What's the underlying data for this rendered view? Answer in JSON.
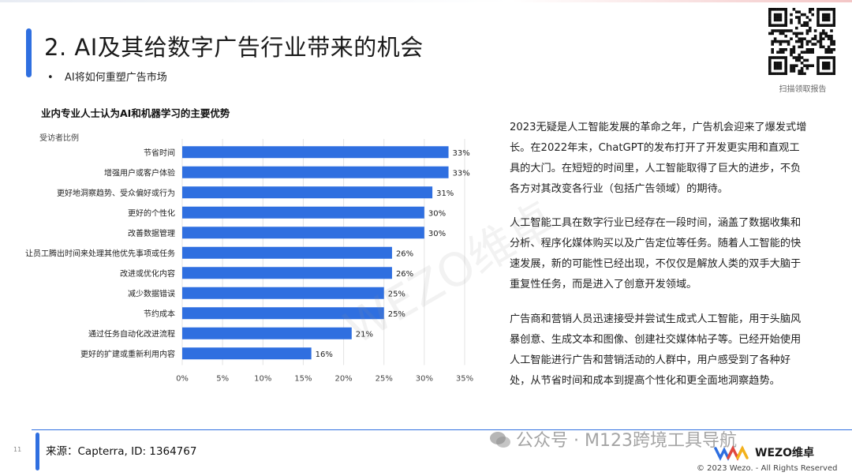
{
  "header": {
    "title": "2. AI及其给数字广告行业带来的机会",
    "bullet": "AI将如何重塑广告市场",
    "qr_caption": "扫描领取报告"
  },
  "chart_data": {
    "type": "bar",
    "orientation": "horizontal",
    "title": "业内专业人士认为AI和机器学习的主要优势",
    "subtitle": "受访者比例",
    "categories": [
      "节省时间",
      "增强用户或客户体验",
      "更好地洞察趋势、受众偏好或行为",
      "更好的个性化",
      "改善数据管理",
      "让员工腾出时间来处理其他优先事项或任务",
      "改进或优化内容",
      "减少数据错误",
      "节约成本",
      "通过任务自动化改进流程",
      "更好的扩建或重新利用内容"
    ],
    "values": [
      33,
      33,
      31,
      30,
      30,
      26,
      26,
      25,
      25,
      21,
      16
    ],
    "value_labels": [
      "33%",
      "33%",
      "31%",
      "30%",
      "30%",
      "26%",
      "26%",
      "25%",
      "25%",
      "21%",
      "16%"
    ],
    "xlim": [
      0,
      35
    ],
    "xticks": [
      "0%",
      "5%",
      "10%",
      "15%",
      "20%",
      "25%",
      "30%",
      "35%"
    ],
    "grid": true,
    "bar_color": "#2f6fe0"
  },
  "text": {
    "p1": "2023无疑是人工智能发展的革命之年，广告机会迎来了爆发式增长。在2022年末，ChatGPT的发布打开了开发更实用和直观工具的大门。在短短的时间里，人工智能取得了巨大的进步，不负各方对其改变各行业（包括广告领域）的期待。",
    "p2": "人工智能工具在数字行业已经存在一段时间，涵盖了数据收集和分析、程序化媒体购买以及广告定位等任务。随着人工智能的快速发展，新的可能性已经出现，不仅仅是解放人类的双手大脑于重复性任务，而是进入了创意开发领域。",
    "p3": "广告商和营销人员迅速接受并尝试生成式人工智能，用于头脑风暴创意、生成文本和图像、创建社交媒体帖子等。已经开始使用人工智能进行广告和营销活动的人群中，用户感受到了各种好处，从节省时间和成本到提高个性化和更全面地洞察趋势。"
  },
  "footer": {
    "page_number": "11",
    "source": "来源：Capterra, ID: 1364767",
    "wechat": "公众号 · M123跨境工具导航",
    "brand": "WEZO维卓",
    "copyright": "© 2023 Wezo. - All Rights Reserved"
  },
  "watermark": "WEZO维卓",
  "colors": {
    "accent": "#2f6fe0",
    "text": "#222222"
  }
}
